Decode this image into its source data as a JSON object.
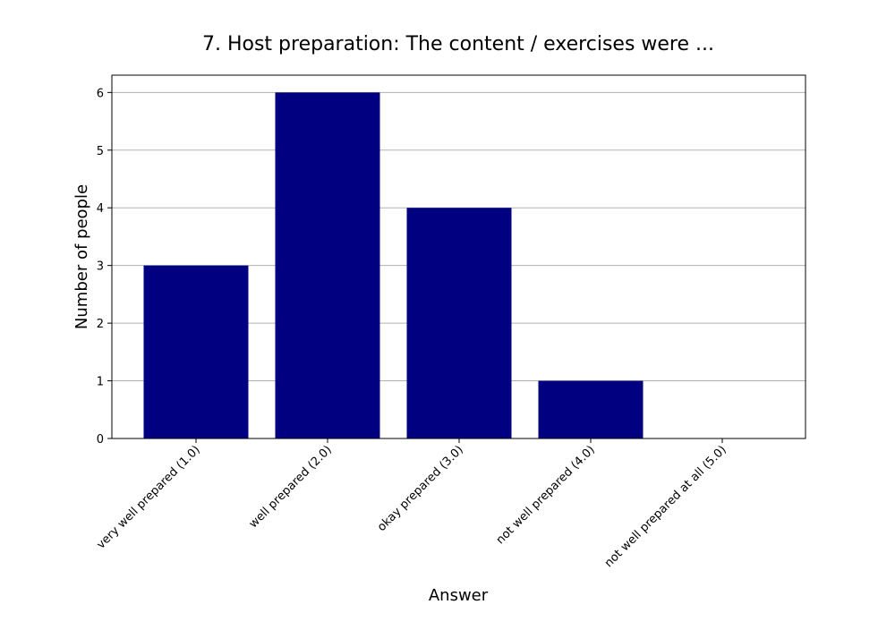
{
  "chart_data": {
    "type": "bar",
    "title": "7. Host preparation: The content / exercises were ...",
    "xlabel": "Answer",
    "ylabel": "Number of people",
    "categories": [
      "very well prepared (1.0)",
      "well prepared (2.0)",
      "okay prepared (3.0)",
      "not well prepared (4.0)",
      "not well prepared at all (5.0)"
    ],
    "values": [
      3,
      6,
      4,
      1,
      0
    ],
    "ylim": [
      0,
      6.3
    ],
    "yticks": [
      0,
      1,
      2,
      3,
      4,
      5,
      6
    ],
    "grid": "horizontal",
    "bar_color": "#000080",
    "grid_color": "#b0b0b0"
  }
}
